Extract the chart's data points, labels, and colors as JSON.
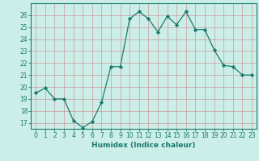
{
  "x": [
    0,
    1,
    2,
    3,
    4,
    5,
    6,
    7,
    8,
    9,
    10,
    11,
    12,
    13,
    14,
    15,
    16,
    17,
    18,
    19,
    20,
    21,
    22,
    23
  ],
  "y": [
    19.5,
    19.9,
    19.0,
    19.0,
    17.2,
    16.6,
    17.1,
    18.7,
    21.7,
    21.7,
    25.7,
    26.3,
    25.7,
    24.6,
    25.9,
    25.2,
    26.3,
    24.8,
    24.8,
    23.1,
    21.8,
    21.7,
    21.0,
    21.0
  ],
  "line_color": "#1a7a6e",
  "marker": "D",
  "marker_size": 2.2,
  "bg_color": "#cceee8",
  "grid_color": "#cc9999",
  "xlabel": "Humidex (Indice chaleur)",
  "xlim": [
    -0.5,
    23.5
  ],
  "ylim": [
    16.5,
    27.0
  ],
  "yticks": [
    17,
    18,
    19,
    20,
    21,
    22,
    23,
    24,
    25,
    26
  ],
  "xticks": [
    0,
    1,
    2,
    3,
    4,
    5,
    6,
    7,
    8,
    9,
    10,
    11,
    12,
    13,
    14,
    15,
    16,
    17,
    18,
    19,
    20,
    21,
    22,
    23
  ],
  "tick_label_fontsize": 5.5,
  "xlabel_fontsize": 6.5,
  "tick_color": "#1a7a6e",
  "border_color": "#1a7a6e",
  "line_width": 0.9
}
